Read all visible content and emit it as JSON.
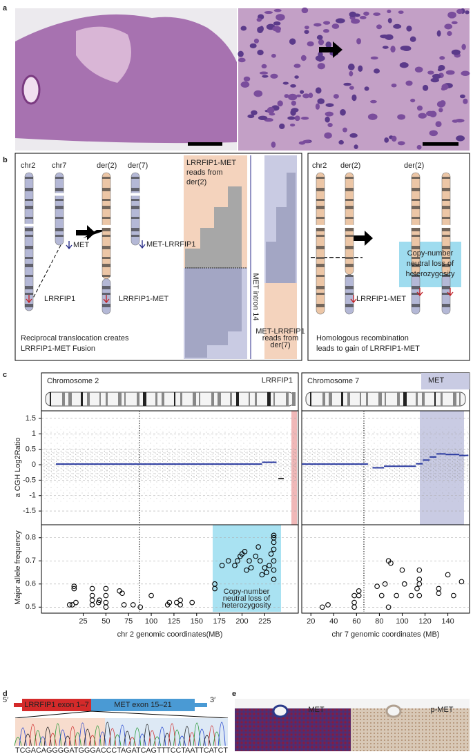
{
  "panel_labels": {
    "a": "a",
    "b": "b",
    "c": "c",
    "d": "d",
    "e": "e"
  },
  "panel_b": {
    "left": {
      "chr2": "chr2",
      "chr7": "chr7",
      "der2": "der(2)",
      "der7": "der(7)",
      "met": "MET",
      "met_lrrfip1": "MET-LRRFIP1",
      "lrrfip1": "LRRFIP1",
      "lrrfip1_met": "LRRFIP1-MET",
      "reads_der2": [
        "LRRFIP1-MET",
        "reads from",
        "der(2)"
      ],
      "intron": "MET intron 14",
      "reads_der7": [
        "MET-LRRFIP1",
        "reads from",
        "der(7)"
      ],
      "caption": [
        "Reciprocal translocation creates",
        "LRRFIP1-MET Fusion"
      ]
    },
    "right": {
      "chr2": "chr2",
      "der2_a": "der(2)",
      "der2_b": "der(2)",
      "cnloh": [
        "Copy-number",
        "neutral loss of",
        "heterozygosity"
      ],
      "lrrfip1_met": "LRRFIP1-MET",
      "caption": [
        "Homologous recombination",
        "leads to gain of LRRFIP1-MET"
      ]
    }
  },
  "chart_data": [
    {
      "type": "scatter",
      "title": "Chromosome 2",
      "gene": "LRRFIP1",
      "xlabel": "chr 2 genomic coordinates(MB)",
      "xlim": [
        -21,
        262
      ],
      "xticks": [
        25,
        50,
        75,
        100,
        125,
        150,
        175,
        200,
        225
      ],
      "acgh": {
        "ylabel": "a CGH  Log2Ratio",
        "ylim": [
          -1.9,
          1.7
        ],
        "yticks": [
          -1.5,
          -1,
          -0.5,
          0,
          0.5,
          1,
          1.5
        ],
        "segments": [
          {
            "start": -5,
            "end": 222,
            "value": 0.02
          },
          {
            "start": 222,
            "end": 238,
            "value": 0.08
          },
          {
            "start": 240,
            "end": 246,
            "value": -0.45
          }
        ]
      },
      "af": {
        "ylabel": "Major allele frequency",
        "ylim": [
          0.48,
          0.85
        ],
        "yticks": [
          0.5,
          0.6,
          0.7,
          0.8
        ],
        "annotation": [
          "Copy-number",
          "neutral loss of",
          "heterozygosity"
        ],
        "x": [
          10,
          13,
          15,
          15,
          17,
          35,
          35,
          35,
          35,
          42,
          43,
          50,
          50,
          50,
          50,
          65,
          68,
          70,
          80,
          88,
          100,
          118,
          120,
          128,
          132,
          132,
          145,
          170,
          170,
          178,
          185,
          192,
          195,
          198,
          200,
          203,
          205,
          208,
          210,
          215,
          218,
          220,
          222,
          225,
          227,
          230,
          232,
          235,
          235,
          235,
          235,
          235,
          235,
          235
        ],
        "values": [
          0.51,
          0.51,
          0.58,
          0.59,
          0.52,
          0.55,
          0.53,
          0.51,
          0.58,
          0.52,
          0.53,
          0.5,
          0.52,
          0.55,
          0.58,
          0.57,
          0.56,
          0.51,
          0.51,
          0.5,
          0.55,
          0.51,
          0.52,
          0.52,
          0.53,
          0.51,
          0.52,
          0.58,
          0.6,
          0.68,
          0.7,
          0.68,
          0.7,
          0.72,
          0.73,
          0.74,
          0.66,
          0.7,
          0.67,
          0.72,
          0.76,
          0.7,
          0.64,
          0.67,
          0.65,
          0.68,
          0.73,
          0.8,
          0.78,
          0.75,
          0.7,
          0.66,
          0.62,
          0.81
        ]
      }
    },
    {
      "type": "scatter",
      "title": "Chromosome 7",
      "gene": "MET",
      "xlabel": "chr 7 genomic coordinates (MB)",
      "xlim": [
        12,
        159
      ],
      "xticks": [
        20,
        40,
        60,
        80,
        100,
        120,
        140
      ],
      "acgh": {
        "ylim": [
          -1.9,
          1.7
        ],
        "segments": [
          {
            "start": 12,
            "end": 70,
            "value": 0.02
          },
          {
            "start": 74,
            "end": 84,
            "value": -0.1
          },
          {
            "start": 84,
            "end": 112,
            "value": -0.05
          },
          {
            "start": 112,
            "end": 118,
            "value": 0.03
          },
          {
            "start": 118,
            "end": 124,
            "value": 0.15
          },
          {
            "start": 124,
            "end": 130,
            "value": 0.25
          },
          {
            "start": 130,
            "end": 138,
            "value": 0.35
          },
          {
            "start": 138,
            "end": 150,
            "value": 0.33
          },
          {
            "start": 150,
            "end": 158,
            "value": 0.3
          }
        ]
      },
      "af": {
        "ylim": [
          0.48,
          0.85
        ],
        "x": [
          30,
          35,
          58,
          58,
          58,
          62,
          62,
          78,
          82,
          85,
          88,
          90,
          88,
          95,
          100,
          102,
          108,
          113,
          115,
          115,
          115,
          115,
          132,
          132,
          140,
          145,
          152
        ],
        "values": [
          0.5,
          0.51,
          0.5,
          0.52,
          0.55,
          0.55,
          0.57,
          0.59,
          0.55,
          0.6,
          0.7,
          0.69,
          0.5,
          0.55,
          0.66,
          0.6,
          0.55,
          0.58,
          0.66,
          0.62,
          0.6,
          0.55,
          0.58,
          0.56,
          0.64,
          0.55,
          0.61
        ]
      }
    }
  ],
  "panel_d": {
    "five": "5′",
    "three": "3′",
    "exon1": "LRRFIP1 exon 1–7",
    "exon2": "MET exon 15–21",
    "sequence": "TCGACAGGGGATGGGACCCTAGATCAGTTTCCTAATTCATCT"
  },
  "panel_e": {
    "met": "MET",
    "pmet": "p-MET"
  }
}
